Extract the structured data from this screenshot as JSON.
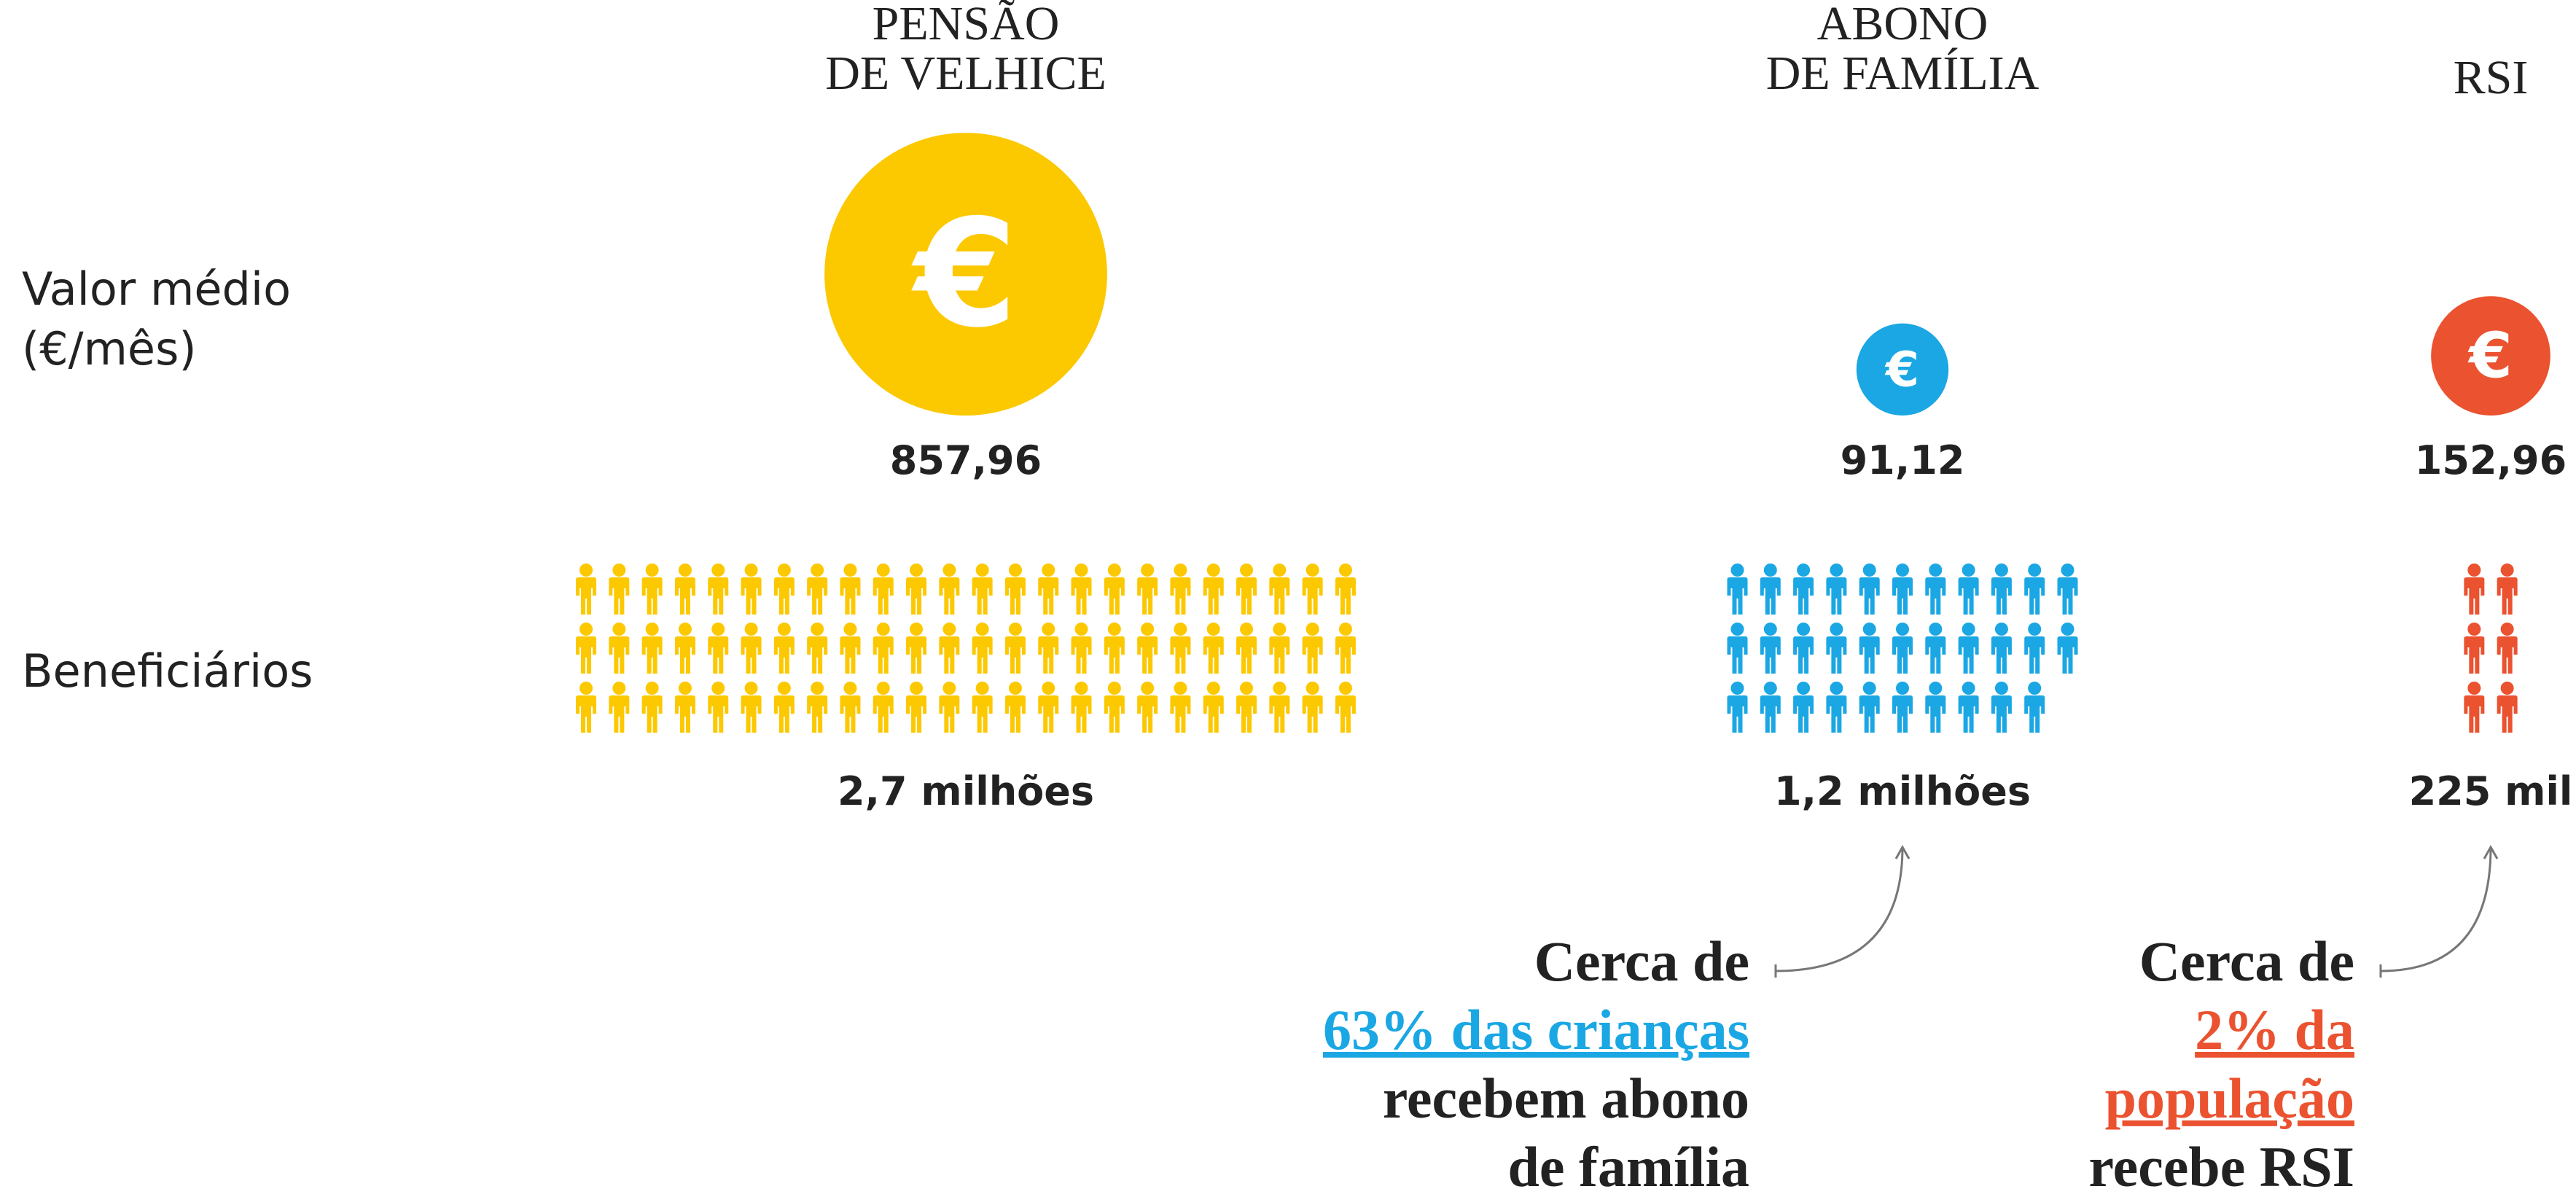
{
  "row_labels": {
    "value": [
      "Valor médio",
      "(€/mês)"
    ],
    "beneficiaries": "Beneficiários"
  },
  "symbol": "€",
  "columns": [
    {
      "title": [
        "PENSÃO",
        "DE VELHICE"
      ],
      "color": "#fcc800",
      "value": 857.96,
      "value_label": "857,96",
      "beneficiaries": 2700000,
      "beneficiaries_label": "2,7 milhões"
    },
    {
      "title": [
        "ABONO",
        "DE FAMÍLIA"
      ],
      "color": "#1aa7e4",
      "value": 91.12,
      "value_label": "91,12",
      "beneficiaries": 1200000,
      "beneficiaries_label": "1,2 milhões",
      "note": [
        {
          "text": "Cerca de",
          "highlight": false
        },
        {
          "text": "63% das crianças",
          "highlight": true
        },
        {
          "text": "recebem abono",
          "highlight": false
        },
        {
          "text": "de família",
          "highlight": false
        }
      ]
    },
    {
      "title": [
        "RSI"
      ],
      "color": "#ea5230",
      "value": 152.96,
      "value_label": "152,96",
      "beneficiaries": 225000,
      "beneficiaries_label": "225 mil",
      "note": [
        {
          "text": "Cerca de",
          "highlight": false
        },
        {
          "text": "2% da",
          "highlight": true
        },
        {
          "text": "população",
          "highlight": true
        },
        {
          "text": "recebe RSI",
          "highlight": false
        }
      ]
    }
  ]
}
